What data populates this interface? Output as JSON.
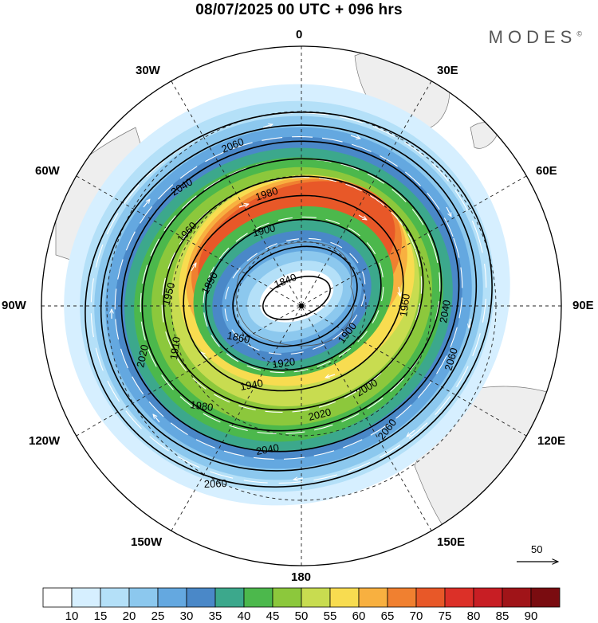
{
  "title": "08/07/2025  00 UTC  + 096 hrs",
  "brand": "MODES",
  "brand_mark": "©",
  "longitude_labels": {
    "n0": "0",
    "n30e": "30E",
    "n60e": "60E",
    "n90e": "90E",
    "n120e": "120E",
    "n150e": "150E",
    "n180": "180",
    "n150w": "150W",
    "n120w": "120W",
    "n90w": "90W",
    "n60w": "60W",
    "n30w": "30W"
  },
  "contour_labels": [
    "2060",
    "2040",
    "1980",
    "1900",
    "1960",
    "1840",
    "1890",
    "1860",
    "1950",
    "1910",
    "2020",
    "1920",
    "1940",
    "1980",
    "2000",
    "2020",
    "2040",
    "2060",
    "1960",
    "1900",
    "2060",
    "2060",
    "2040"
  ],
  "reference_vector": {
    "value": "50"
  },
  "colorbar": {
    "colors": [
      "#ffffff",
      "#d6efff",
      "#b4e0f8",
      "#8cc8ee",
      "#64a8e0",
      "#4a88c8",
      "#3ca88c",
      "#4cb84c",
      "#8cc83c",
      "#c8dc50",
      "#f8dc50",
      "#f8b040",
      "#f08030",
      "#e85828",
      "#dc3028",
      "#c81e24",
      "#a01418",
      "#7a0c10"
    ],
    "labels": [
      "10",
      "15",
      "20",
      "25",
      "30",
      "35",
      "40",
      "45",
      "50",
      "55",
      "60",
      "65",
      "70",
      "75",
      "80",
      "85",
      "90"
    ],
    "units": ""
  },
  "map": {
    "projection": "south-polar-stereographic",
    "pole_marker": true
  }
}
